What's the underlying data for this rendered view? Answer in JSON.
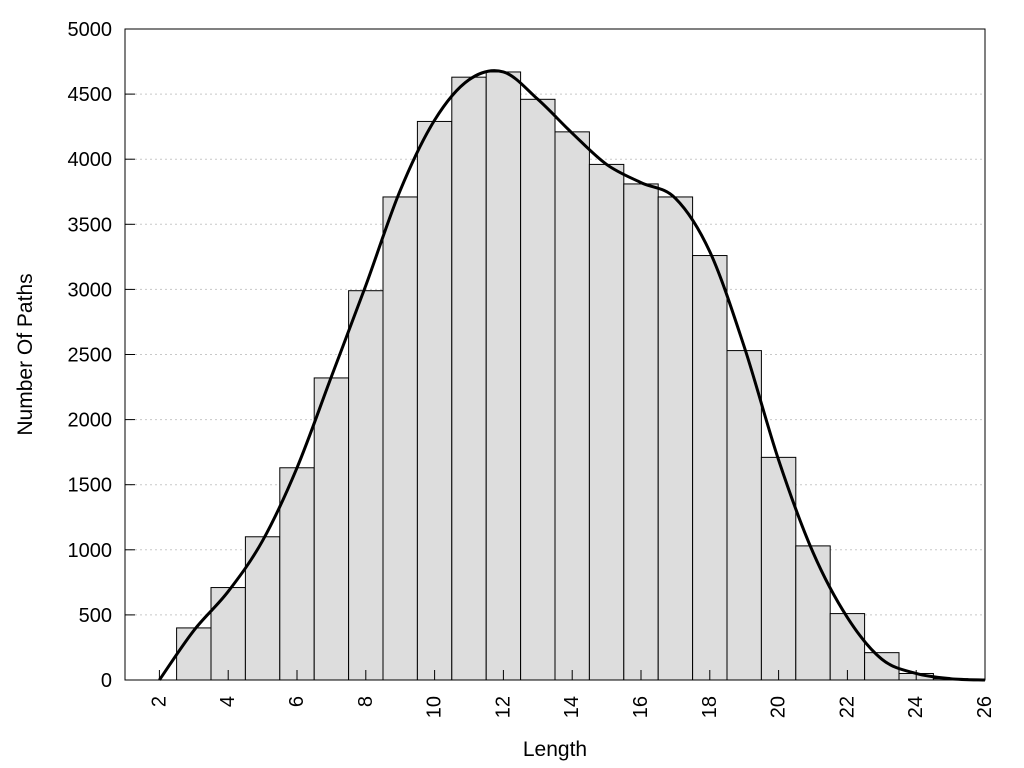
{
  "chart_data": {
    "type": "bar",
    "title": "",
    "xlabel": "Length",
    "ylabel": "Number Of Paths",
    "xlim": [
      1,
      26
    ],
    "ylim": [
      0,
      5000
    ],
    "x_ticks": [
      2,
      4,
      6,
      8,
      10,
      12,
      14,
      16,
      18,
      20,
      22,
      24,
      26
    ],
    "y_ticks": [
      0,
      500,
      1000,
      1500,
      2000,
      2500,
      3000,
      3500,
      4000,
      4500,
      5000
    ],
    "grid": "horizontal dotted",
    "bar_color": "#dddddd",
    "bar_edge_color": "#000000",
    "bars": {
      "x": [
        3,
        4,
        5,
        6,
        7,
        8,
        9,
        10,
        11,
        12,
        13,
        14,
        15,
        16,
        17,
        18,
        19,
        20,
        21,
        22,
        23,
        24,
        25
      ],
      "values": [
        400,
        710,
        1100,
        1630,
        2320,
        2990,
        3710,
        4290,
        4630,
        4670,
        4460,
        4210,
        3960,
        3810,
        3710,
        3260,
        2530,
        1710,
        1030,
        510,
        210,
        50,
        10
      ]
    },
    "curve": {
      "type": "line",
      "color": "#000000",
      "x": [
        2,
        3,
        4,
        5,
        6,
        7,
        8,
        9,
        10,
        11,
        12,
        13,
        14,
        15,
        16,
        17,
        18,
        19,
        20,
        21,
        22,
        23,
        24,
        25,
        26
      ],
      "values": [
        0,
        380,
        680,
        1070,
        1630,
        2330,
        3030,
        3760,
        4300,
        4610,
        4670,
        4460,
        4200,
        3960,
        3820,
        3700,
        3290,
        2560,
        1690,
        980,
        480,
        160,
        50,
        10,
        0
      ]
    }
  }
}
